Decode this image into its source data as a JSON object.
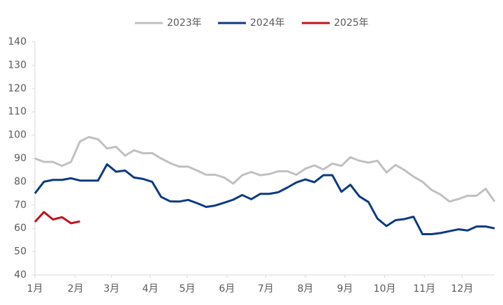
{
  "chart_data": {
    "type": "line",
    "x": [
      1,
      2,
      3,
      4,
      5,
      6,
      7,
      8,
      9,
      10,
      11,
      12,
      13,
      14,
      15,
      16,
      17,
      18,
      19,
      20,
      21,
      22,
      23,
      24,
      25,
      26,
      27,
      28,
      29,
      30,
      31,
      32,
      33,
      34,
      35,
      36,
      37,
      38,
      39,
      40,
      41,
      42,
      43,
      44,
      45,
      46,
      47,
      48,
      49,
      50,
      51,
      52
    ],
    "xlim": [
      1,
      52
    ],
    "xticks": [
      {
        "value": 1,
        "label": "1月"
      },
      {
        "value": 5.5,
        "label": "2月"
      },
      {
        "value": 9.5,
        "label": "3月"
      },
      {
        "value": 13.8,
        "label": "4月"
      },
      {
        "value": 17.9,
        "label": "5月"
      },
      {
        "value": 22.3,
        "label": "6月"
      },
      {
        "value": 26.6,
        "label": "7月"
      },
      {
        "value": 31,
        "label": "8月"
      },
      {
        "value": 35.4,
        "label": "9月"
      },
      {
        "value": 39.8,
        "label": "10月"
      },
      {
        "value": 44.2,
        "label": "11月"
      },
      {
        "value": 48.4,
        "label": "12月"
      }
    ],
    "ylim": [
      40,
      140
    ],
    "yticks": [
      40,
      50,
      60,
      70,
      80,
      90,
      100,
      110,
      120,
      130,
      140
    ],
    "legend": "top",
    "series": [
      {
        "name": "2023年",
        "color": "#c0c0c0",
        "values": [
          90,
          88.5,
          88.5,
          86.8,
          88.5,
          97.3,
          99.2,
          98.2,
          94.3,
          95,
          91.2,
          93.5,
          92.2,
          92.3,
          90,
          88,
          86.5,
          86.5,
          84.8,
          83,
          83,
          81.8,
          79.2,
          82.8,
          84.2,
          82.8,
          83.3,
          84.5,
          84.5,
          83,
          85.6,
          87,
          85.3,
          87.8,
          86.8,
          90.5,
          89,
          88.2,
          89,
          84,
          87.2,
          85,
          82.2,
          80,
          76.5,
          74.5,
          71.5,
          72.6,
          74,
          74,
          77,
          71.5
        ]
      },
      {
        "name": "2024年",
        "color": "#0b3a82",
        "values": [
          75,
          80,
          80.8,
          80.8,
          81.5,
          80.5,
          80.5,
          80.5,
          87.5,
          84.3,
          84.8,
          81.8,
          81.2,
          80,
          73.5,
          71.6,
          71.5,
          72.2,
          70.8,
          69.2,
          69.8,
          71,
          72.3,
          74.3,
          72.5,
          74.8,
          74.8,
          75.5,
          77.5,
          79.7,
          81,
          79.8,
          82.8,
          82.8,
          75.7,
          78.7,
          73.7,
          71.3,
          64.2,
          61,
          63.5,
          64,
          65,
          57.5,
          57.5,
          58,
          58.8,
          59.6,
          59.1,
          60.8,
          60.8,
          60
        ]
      },
      {
        "name": "2025年",
        "color": "#c0141e",
        "values": [
          62.8,
          67,
          63.8,
          64.8,
          62.2,
          63,
          null,
          null,
          null,
          null,
          null,
          null,
          null,
          null,
          null,
          null,
          null,
          null,
          null,
          null,
          null,
          null,
          null,
          null,
          null,
          null,
          null,
          null,
          null,
          null,
          null,
          null,
          null,
          null,
          null,
          null,
          null,
          null,
          null,
          null,
          null,
          null,
          null,
          null,
          null,
          null,
          null,
          null,
          null,
          null,
          null,
          null
        ]
      }
    ]
  }
}
